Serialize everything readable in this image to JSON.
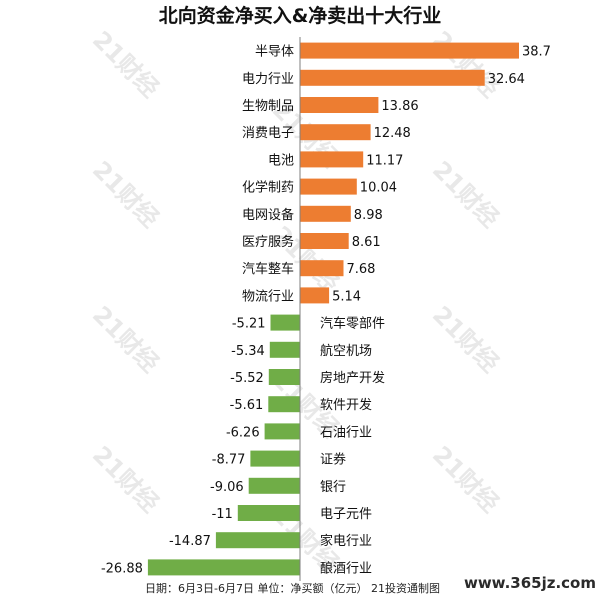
{
  "title": "北向资金净买入&净卖出十大行业",
  "footer": "日期：6月3日-6月7日 单位：净买额（亿元） 21投资通制图",
  "watermark": "21财经",
  "site_mark": "www.365jz.com",
  "colors": {
    "positive": "#ED7D31",
    "negative": "#70AD47",
    "axis": "#7f7f7f"
  },
  "chart_data": {
    "type": "bar",
    "orientation": "horizontal",
    "title": "北向资金净买入&净卖出十大行业",
    "xlabel": "",
    "ylabel": "",
    "legend": "none",
    "grid": false,
    "categories": [
      "半导体",
      "电力行业",
      "生物制品",
      "消费电子",
      "电池",
      "化学制药",
      "电网设备",
      "医疗服务",
      "汽车整车",
      "物流行业",
      "汽车零部件",
      "航空机场",
      "房地产开发",
      "软件开发",
      "石油行业",
      "证券",
      "银行",
      "电子元件",
      "家电行业",
      "酿酒行业"
    ],
    "values": [
      38.7,
      32.64,
      13.86,
      12.48,
      11.17,
      10.04,
      8.98,
      8.61,
      7.68,
      5.14,
      -5.21,
      -5.34,
      -5.52,
      -5.61,
      -6.26,
      -8.77,
      -9.06,
      -11,
      -14.87,
      -26.88
    ],
    "value_labels": [
      "38.7",
      "32.64",
      "13.86",
      "12.48",
      "11.17",
      "10.04",
      "8.98",
      "8.61",
      "7.68",
      "5.14",
      "-5.21",
      "-5.34",
      "-5.52",
      "-5.61",
      "-6.26",
      "-8.77",
      "-9.06",
      "-11",
      "-14.87",
      "-26.88"
    ],
    "xlim": [
      -26.88,
      38.7
    ]
  }
}
